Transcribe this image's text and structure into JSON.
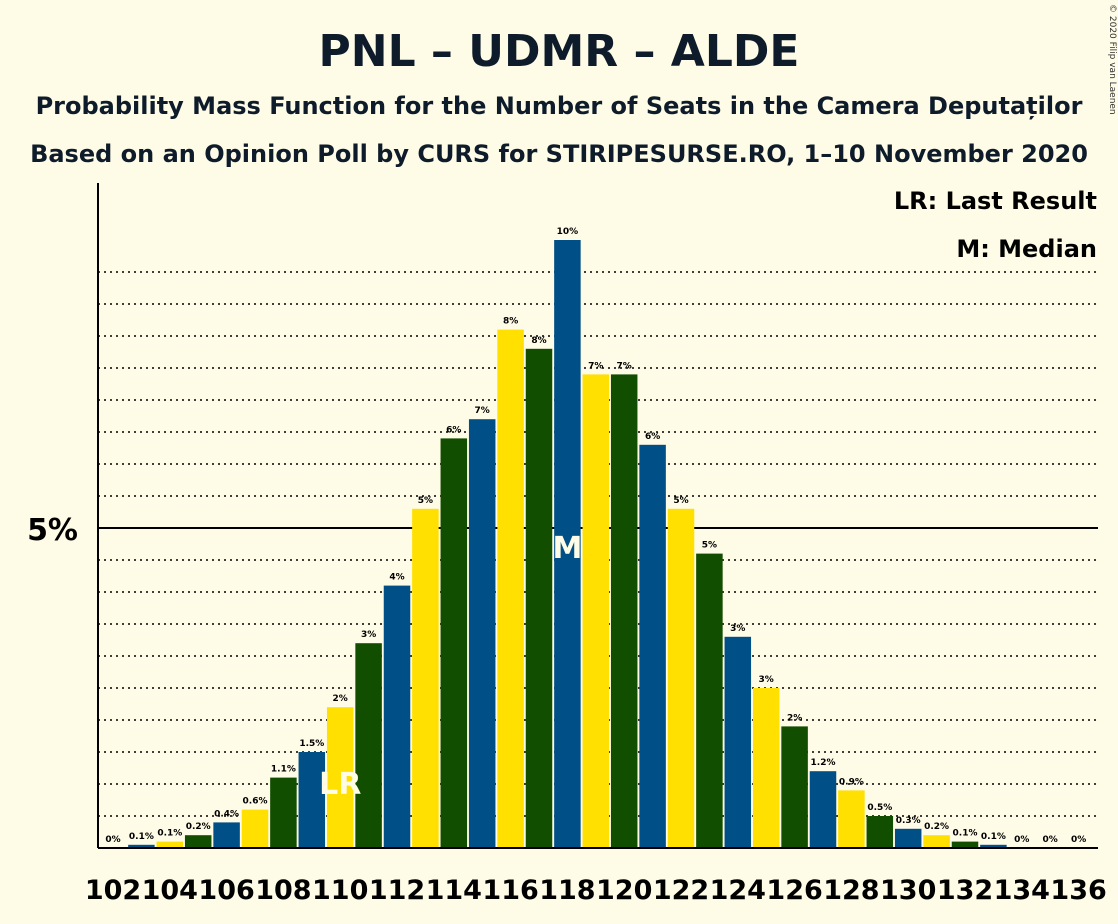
{
  "chart_data": {
    "type": "bar",
    "title": "PNL – UDMR – ALDE",
    "subtitle": "Probability Mass Function for the Number of Seats in the Camera Deputaților",
    "subtitle2": "Based on an Opinion Poll by CURS for STIRIPESURSE.RO, 1–10 November 2020",
    "credit": "© 2020 Filip van Laenen",
    "ytick_label": "5%",
    "ylim": [
      0,
      10.4
    ],
    "grid": "dotted every 0.5%, solid at 5%",
    "legend": [
      "LR: Last Result",
      "M: Median"
    ],
    "legend_position": "top-right",
    "xtick_labels": [
      "102",
      "104",
      "106",
      "108",
      "110",
      "112",
      "114",
      "116",
      "118",
      "120",
      "122",
      "124",
      "126",
      "128",
      "130",
      "132",
      "134",
      "136"
    ],
    "categories": [
      102,
      103,
      104,
      105,
      106,
      107,
      108,
      109,
      110,
      111,
      112,
      113,
      114,
      115,
      116,
      117,
      118,
      119,
      120,
      121,
      122,
      123,
      124,
      125,
      126,
      127,
      128,
      129,
      130,
      131,
      132,
      133,
      134,
      135,
      136
    ],
    "values": [
      0,
      0.05,
      0.1,
      0.2,
      0.4,
      0.6,
      1.1,
      1.5,
      2.2,
      3.2,
      4.1,
      5.3,
      6.4,
      6.7,
      8.1,
      7.8,
      9.5,
      7.4,
      7.4,
      6.3,
      5.3,
      4.6,
      3.3,
      2.5,
      1.9,
      1.2,
      0.9,
      0.5,
      0.3,
      0.2,
      0.1,
      0.05,
      0,
      0,
      0
    ],
    "data_labels": [
      "0%",
      "0.1%",
      "0.1%",
      "0.2%",
      "0.4%",
      "0.6%",
      "1.1%",
      "1.5%",
      "2%",
      "3%",
      "4%",
      "5%",
      "6%",
      "7%",
      "8%",
      "8%",
      "10%",
      "7%",
      "7%",
      "6%",
      "5%",
      "5%",
      "3%",
      "3%",
      "2%",
      "1.2%",
      "0.9%",
      "0.5%",
      "0.3%",
      "0.2%",
      "0.1%",
      "0.1%",
      "0%",
      "0%",
      "0%"
    ],
    "colors": {
      "palette": [
        "#124e00",
        "#005087",
        "#ffe000"
      ],
      "background": "#fefbe6"
    },
    "last_result": {
      "seat": 110,
      "label": "LR"
    },
    "median": {
      "seat": 118,
      "label": "M"
    }
  }
}
